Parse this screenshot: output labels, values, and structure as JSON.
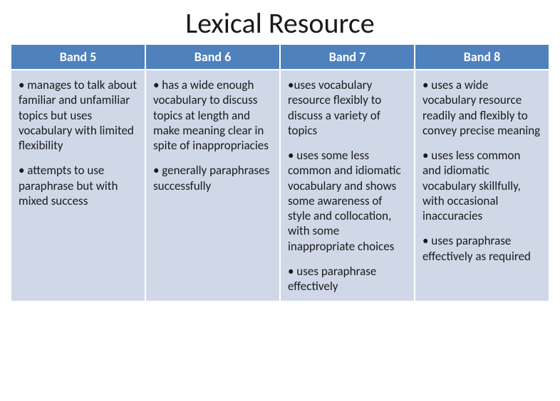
{
  "title": "Lexical Resource",
  "table": {
    "type": "table",
    "header_bg": "#4f81bd",
    "header_color": "#ffffff",
    "cell_bg": "#d0d8e8",
    "cell_color": "#1a1a1a",
    "border_color": "#ffffff",
    "title_fontsize": 40,
    "header_fontsize": 18,
    "cell_fontsize": 17,
    "columns": [
      "Band 5",
      "Band 6",
      "Band 7",
      "Band 8"
    ],
    "cells": {
      "band5": [
        "• manages to talk about familiar and unfamiliar topics but uses vocabulary with limited flexibility",
        "• attempts to use paraphrase but with mixed success"
      ],
      "band6": [
        "• has a wide enough vocabulary to discuss topics at length and make meaning clear in spite of inappropriacies",
        " • generally paraphrases successfully"
      ],
      "band7": [
        "•uses vocabulary resource flexibly to discuss a variety of topics",
        "• uses some less common and idiomatic vocabulary and shows some awareness of style and collocation, with some inappropriate choices",
        " • uses paraphrase effectively"
      ],
      "band8": [
        "• uses a wide vocabulary resource readily and flexibly to convey precise meaning",
        "• uses less common and idiomatic vocabulary skillfully, with occasional inaccuracies",
        "• uses paraphrase effectively as required"
      ]
    }
  }
}
